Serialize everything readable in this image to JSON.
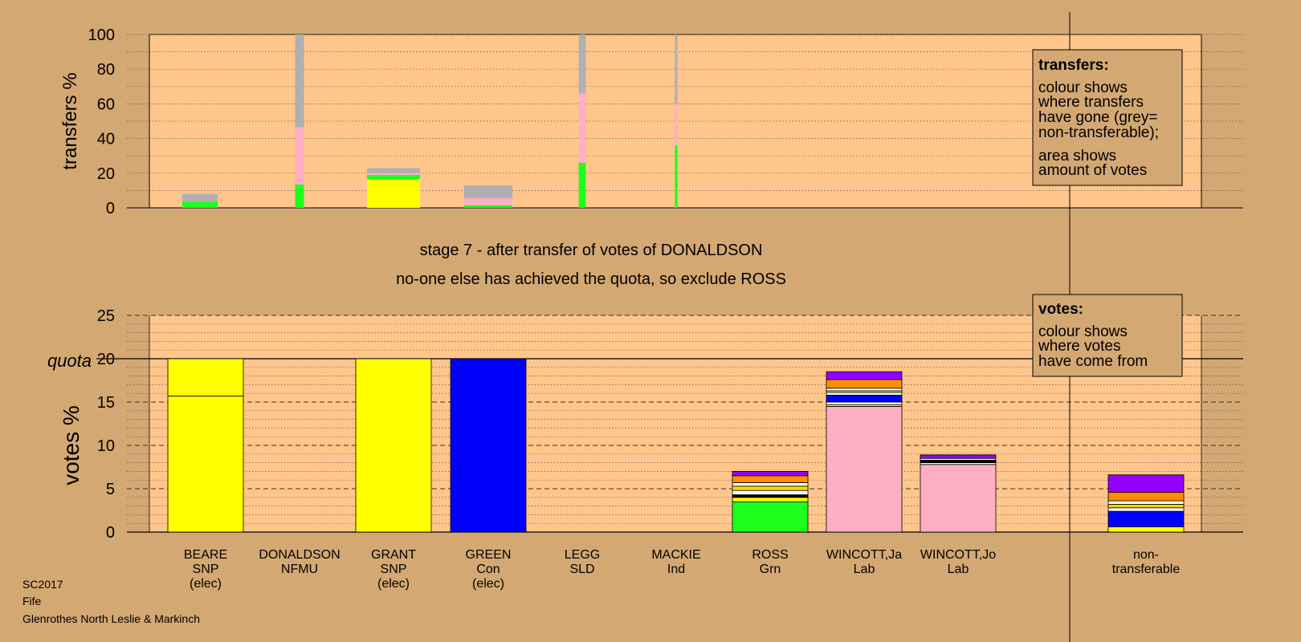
{
  "colors": {
    "background": "#d4a873",
    "plot_bg": "#ffc68c",
    "SNP": "#ffff00",
    "Con": "#0000ff",
    "Lab": "#ffafc3",
    "Grn": "#1dff1d",
    "non_transferable": "#b0b0b0",
    "Ind": "#ff8c00",
    "LD": "#ffd700",
    "other": "#9400ff",
    "white": "#ffffff",
    "black": "#000000"
  },
  "stage_text": {
    "line1": "stage 7 - after transfer of votes of DONALDSON",
    "line2": "no-one else has achieved the quota, so exclude ROSS"
  },
  "legend_transfers": {
    "title": "transfers:",
    "lines": [
      "colour shows",
      "where transfers",
      "have gone (grey=",
      "non-transferable);",
      "area shows",
      "amount of votes"
    ]
  },
  "legend_votes": {
    "title": "votes:",
    "lines": [
      "colour shows",
      "where votes",
      "have come from"
    ]
  },
  "footer": {
    "line1": "SC2017",
    "line2": "Fife",
    "line3": "Glenrothes North Leslie & Markinch"
  },
  "chart_data": [
    {
      "type": "bar",
      "ylabel": "transfers %",
      "ylim": [
        0,
        100
      ],
      "yticks": [
        0,
        20,
        40,
        60,
        80,
        100
      ],
      "grid": "dotted",
      "transfers": [
        {
          "stage": "stage 1",
          "width_share": 0.4,
          "segments": [
            {
              "color": "Grn",
              "value": 3.5
            },
            {
              "color": "non_transferable",
              "value": 4.5
            }
          ]
        },
        {
          "stage": "stage 2",
          "width_share": 0.1,
          "segments": [
            {
              "color": "Grn",
              "value": 13.5
            },
            {
              "color": "Lab",
              "value": 33
            },
            {
              "color": "non_transferable",
              "value": 53.5
            }
          ]
        },
        {
          "stage": "stage 3",
          "width_share": 0.6,
          "segments": [
            {
              "color": "SNP",
              "value": 16.5
            },
            {
              "color": "Grn",
              "value": 2.5
            },
            {
              "color": "Lab",
              "value": 1
            },
            {
              "color": "non_transferable",
              "value": 3
            }
          ]
        },
        {
          "stage": "stage 4",
          "width_share": 0.55,
          "segments": [
            {
              "color": "Grn",
              "value": 1.5
            },
            {
              "color": "Lab",
              "value": 4
            },
            {
              "color": "non_transferable",
              "value": 7.5
            }
          ]
        },
        {
          "stage": "stage 5",
          "width_share": 0.08,
          "segments": [
            {
              "color": "Grn",
              "value": 26
            },
            {
              "color": "Lab",
              "value": 40
            },
            {
              "color": "non_transferable",
              "value": 34
            }
          ]
        },
        {
          "stage": "stage 6",
          "width_share": 0.03,
          "segments": [
            {
              "color": "Grn",
              "value": 36
            },
            {
              "color": "Lab",
              "value": 24
            },
            {
              "color": "non_transferable",
              "value": 40
            }
          ]
        }
      ]
    },
    {
      "type": "bar",
      "ylabel": "votes %",
      "ylim": [
        0,
        25
      ],
      "yticks": [
        0,
        5,
        10,
        15,
        20,
        25
      ],
      "quota": 20,
      "quota_label": "quota",
      "grid": "dotted",
      "categories": [
        {
          "name": "BEARE",
          "party": "SNP",
          "note": "(elec)"
        },
        {
          "name": "DONALDSON",
          "party": "NFMU",
          "note": ""
        },
        {
          "name": "GRANT",
          "party": "SNP",
          "note": "(elec)"
        },
        {
          "name": "GREEN",
          "party": "Con",
          "note": "(elec)"
        },
        {
          "name": "LEGG",
          "party": "SLD",
          "note": ""
        },
        {
          "name": "MACKIE",
          "party": "Ind",
          "note": ""
        },
        {
          "name": "ROSS",
          "party": "Grn",
          "note": ""
        },
        {
          "name": "WINCOTT,Ja",
          "party": "Lab",
          "note": ""
        },
        {
          "name": "WINCOTT,Jo",
          "party": "Lab",
          "note": ""
        },
        {
          "name": "",
          "party": "",
          "note": ""
        },
        {
          "name": "non-",
          "party": "transferable",
          "note": ""
        }
      ],
      "stacks": [
        [
          {
            "color": "SNP",
            "value": 15.7
          },
          {
            "color": "SNP",
            "value": 4.3
          }
        ],
        [],
        [
          {
            "color": "SNP",
            "value": 20
          }
        ],
        [
          {
            "color": "Con",
            "value": 20
          }
        ],
        [],
        [],
        [
          {
            "color": "Grn",
            "value": 3.5
          },
          {
            "color": "SNP",
            "value": 0.5
          },
          {
            "color": "black",
            "value": 0.3
          },
          {
            "color": "white",
            "value": 0.5
          },
          {
            "color": "LD",
            "value": 0.5
          },
          {
            "color": "white",
            "value": 0.4
          },
          {
            "color": "Ind",
            "value": 0.8
          },
          {
            "color": "other",
            "value": 0.5
          }
        ],
        [
          {
            "color": "Lab",
            "value": 14.5
          },
          {
            "color": "SNP",
            "value": 0.2
          },
          {
            "color": "white",
            "value": 0.3
          },
          {
            "color": "Con",
            "value": 0.8
          },
          {
            "color": "white",
            "value": 0.3
          },
          {
            "color": "LD",
            "value": 0.2
          },
          {
            "color": "white",
            "value": 0.3
          },
          {
            "color": "Ind",
            "value": 1.0
          },
          {
            "color": "other",
            "value": 0.9
          }
        ],
        [
          {
            "color": "Lab",
            "value": 7.8
          },
          {
            "color": "white",
            "value": 0.2
          },
          {
            "color": "black",
            "value": 0.3
          },
          {
            "color": "white",
            "value": 0.2
          },
          {
            "color": "other",
            "value": 0.4
          }
        ],
        [],
        [
          {
            "color": "SNP",
            "value": 0.6
          },
          {
            "color": "Con",
            "value": 1.8
          },
          {
            "color": "white",
            "value": 0.4
          },
          {
            "color": "LD",
            "value": 0.4
          },
          {
            "color": "white",
            "value": 0.4
          },
          {
            "color": "Ind",
            "value": 1.0
          },
          {
            "color": "other",
            "value": 2.0
          }
        ]
      ]
    }
  ]
}
